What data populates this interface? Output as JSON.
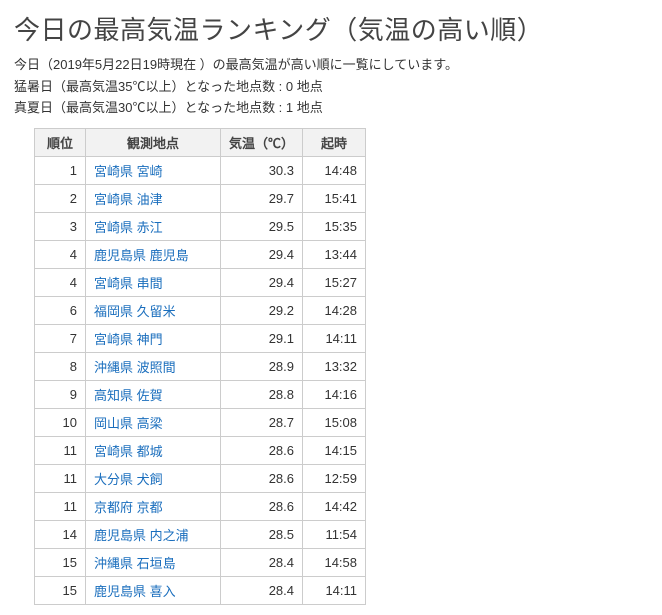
{
  "title": "今日の最高気温ランキング（気温の高い順）",
  "desc1": "今日（2019年5月22日19時現在 ）の最高気温が高い順に一覧にしています。",
  "desc2": "猛暑日（最高気温35℃以上）となった地点数 : 0 地点",
  "desc3": "真夏日（最高気温30℃以上）となった地点数 : 1 地点",
  "columns": {
    "rank": "順位",
    "loc": "観測地点",
    "temp": "気温（℃）",
    "time": "起時"
  },
  "rows": [
    {
      "rank": "1",
      "loc": "宮崎県 宮崎",
      "temp": "30.3",
      "time": "14:48"
    },
    {
      "rank": "2",
      "loc": "宮崎県 油津",
      "temp": "29.7",
      "time": "15:41"
    },
    {
      "rank": "3",
      "loc": "宮崎県 赤江",
      "temp": "29.5",
      "time": "15:35"
    },
    {
      "rank": "4",
      "loc": "鹿児島県 鹿児島",
      "temp": "29.4",
      "time": "13:44"
    },
    {
      "rank": "4",
      "loc": "宮崎県 串間",
      "temp": "29.4",
      "time": "15:27"
    },
    {
      "rank": "6",
      "loc": "福岡県 久留米",
      "temp": "29.2",
      "time": "14:28"
    },
    {
      "rank": "7",
      "loc": "宮崎県 神門",
      "temp": "29.1",
      "time": "14:11"
    },
    {
      "rank": "8",
      "loc": "沖縄県 波照間",
      "temp": "28.9",
      "time": "13:32"
    },
    {
      "rank": "9",
      "loc": "高知県 佐賀",
      "temp": "28.8",
      "time": "14:16"
    },
    {
      "rank": "10",
      "loc": "岡山県 高梁",
      "temp": "28.7",
      "time": "15:08"
    },
    {
      "rank": "11",
      "loc": "宮崎県 都城",
      "temp": "28.6",
      "time": "14:15"
    },
    {
      "rank": "11",
      "loc": "大分県 犬飼",
      "temp": "28.6",
      "time": "12:59"
    },
    {
      "rank": "11",
      "loc": "京都府 京都",
      "temp": "28.6",
      "time": "14:42"
    },
    {
      "rank": "14",
      "loc": "鹿児島県 内之浦",
      "temp": "28.5",
      "time": "11:54"
    },
    {
      "rank": "15",
      "loc": "沖縄県 石垣島",
      "temp": "28.4",
      "time": "14:58"
    },
    {
      "rank": "15",
      "loc": "鹿児島県 喜入",
      "temp": "28.4",
      "time": "14:11"
    }
  ]
}
